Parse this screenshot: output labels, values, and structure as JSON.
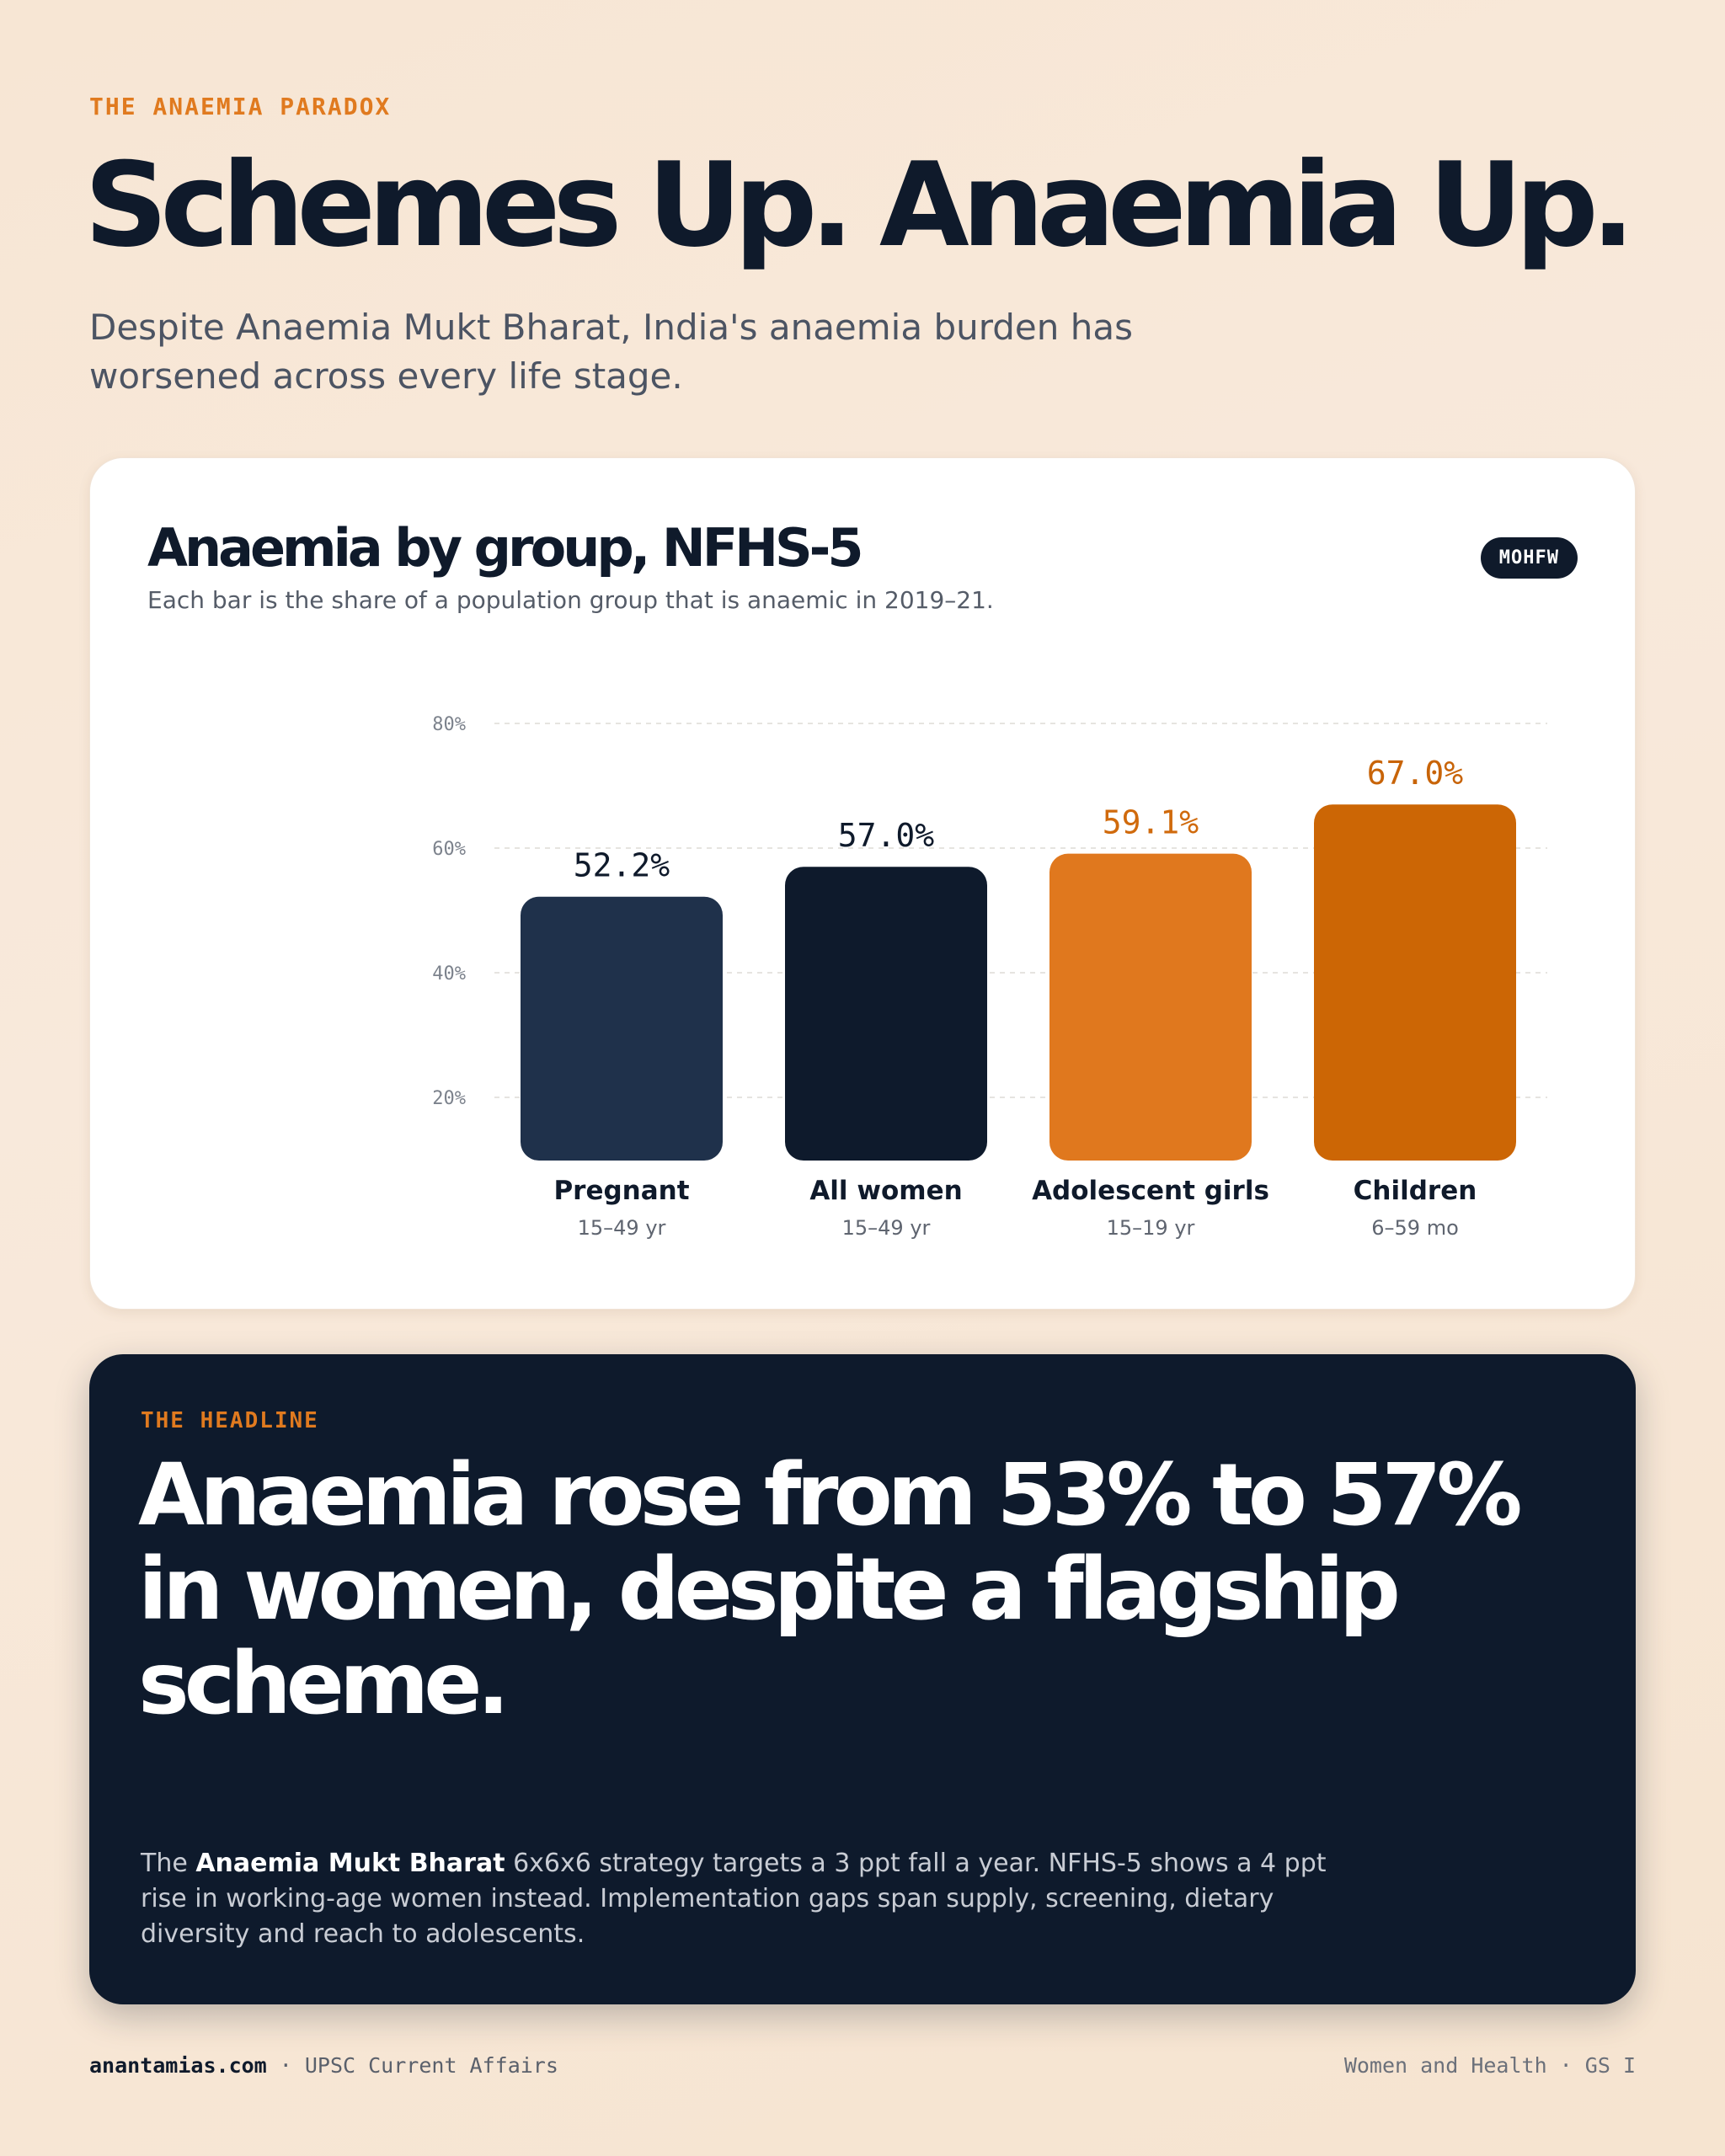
{
  "header": {
    "kicker": "THE ANAEMIA PARADOX",
    "title": "Schemes Up. Anaemia Up.",
    "subtitle": "Despite Anaemia Mukt Bharat, India's anaemia burden has worsened across every life stage."
  },
  "card": {
    "badge": "MOHFW"
  },
  "chart_data": {
    "type": "bar",
    "title": "Anaemia by group, NFHS-5",
    "subtitle": "Each bar is the share of a population group that is anaemic in 2019–21.",
    "categories": [
      "Pregnant",
      "All women",
      "Adolescent girls",
      "Children"
    ],
    "category_sublabels": [
      "15–49 yr",
      "15–49 yr",
      "15–19 yr",
      "6–59 mo"
    ],
    "values": [
      52.2,
      57.0,
      59.1,
      67.0
    ],
    "value_labels": [
      "52.2%",
      "57.0%",
      "59.1%",
      "67.0%"
    ],
    "bar_colors": [
      "#1f314b",
      "#0e1a2c",
      "#e0781e",
      "#cc6605"
    ],
    "value_label_colors": [
      "#0f1a2b",
      "#0f1a2b",
      "#d06a0c",
      "#c86408"
    ],
    "y_ticks": [
      20,
      40,
      60,
      80
    ],
    "y_tick_labels": [
      "20%",
      "40%",
      "60%",
      "80%"
    ],
    "ylim": [
      10,
      80
    ],
    "grid": true,
    "legend": "none"
  },
  "headline_box": {
    "kicker": "THE HEADLINE",
    "headline": "Anaemia rose from 53% to 57% in women, despite a flagship scheme.",
    "body_prefix": "The ",
    "body_emphasis": "Anaemia Mukt Bharat",
    "body_rest": " 6x6x6 strategy targets a 3 ppt fall a year. NFHS-5 shows a 4 ppt rise in working-age women instead. Implementation gaps span supply, screening, dietary diversity and reach to adolescents."
  },
  "footer": {
    "site": "anantamias.com",
    "separator": " · ",
    "section": "UPSC Current Affairs",
    "tag": "Women and Health · GS I"
  }
}
